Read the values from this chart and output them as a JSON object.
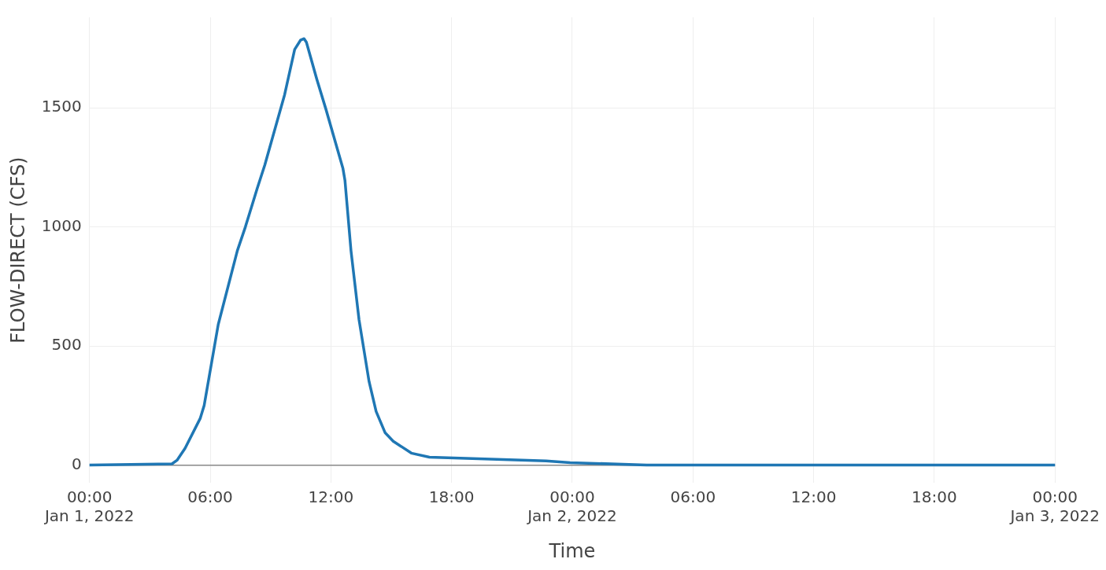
{
  "chart_data": {
    "type": "line",
    "xlabel": "Time",
    "ylabel": "FLOW-DIRECT (CFS)",
    "x": [
      "2022-01-01T00:00",
      "2022-01-01T04:06",
      "2022-01-01T04:21",
      "2022-01-01T04:45",
      "2022-01-01T05:30",
      "2022-01-01T05:42",
      "2022-01-01T06:24",
      "2022-01-01T07:21",
      "2022-01-01T07:45",
      "2022-01-01T08:20",
      "2022-01-01T08:43",
      "2022-01-01T09:19",
      "2022-01-01T09:42",
      "2022-01-01T10:12",
      "2022-01-01T10:30",
      "2022-01-01T10:40",
      "2022-01-01T10:47",
      "2022-01-01T11:18",
      "2022-01-01T11:45",
      "2022-01-01T12:36",
      "2022-01-01T12:42",
      "2022-01-01T13:00",
      "2022-01-01T13:24",
      "2022-01-01T13:54",
      "2022-01-01T14:15",
      "2022-01-01T14:42",
      "2022-01-01T15:06",
      "2022-01-01T16:00",
      "2022-01-01T16:54",
      "2022-01-01T22:42",
      "2022-01-01T23:54",
      "2022-01-02T03:42",
      "2022-01-03T00:00"
    ],
    "series": [
      {
        "color": "#1f77b4",
        "values": [
          0,
          5,
          20,
          70,
          195,
          250,
          590,
          900,
          1000,
          1160,
          1260,
          1440,
          1555,
          1745,
          1785,
          1790,
          1775,
          1620,
          1495,
          1245,
          1195,
          900,
          610,
          350,
          225,
          135,
          100,
          50,
          33,
          17,
          10,
          0,
          0
        ]
      }
    ],
    "xlim": [
      "2022-01-01T00:00",
      "2022-01-03T00:00"
    ],
    "xticks": [
      {
        "value": "2022-01-01T00:00",
        "label": "00:00\nJan 1, 2022"
      },
      {
        "value": "2022-01-01T06:00",
        "label": "06:00"
      },
      {
        "value": "2022-01-01T12:00",
        "label": "12:00"
      },
      {
        "value": "2022-01-01T18:00",
        "label": "18:00"
      },
      {
        "value": "2022-01-02T00:00",
        "label": "00:00\nJan 2, 2022"
      },
      {
        "value": "2022-01-02T06:00",
        "label": "06:00"
      },
      {
        "value": "2022-01-02T12:00",
        "label": "12:00"
      },
      {
        "value": "2022-01-02T18:00",
        "label": "18:00"
      },
      {
        "value": "2022-01-03T00:00",
        "label": "00:00\nJan 3, 2022"
      }
    ],
    "ylim": [
      -75,
      1880
    ],
    "yticks": [
      0,
      500,
      1000,
      1500
    ],
    "grid": true,
    "legend": false,
    "marker": "none",
    "line_style": "solid"
  }
}
